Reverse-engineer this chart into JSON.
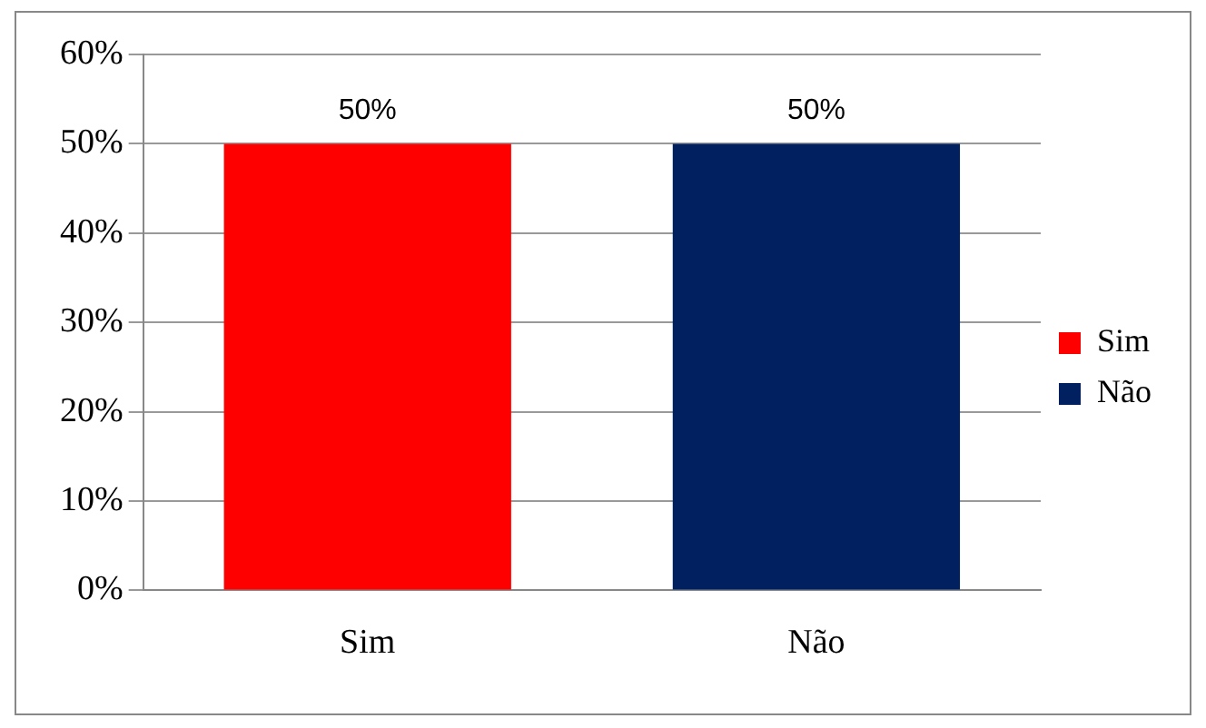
{
  "chart_data": {
    "type": "bar",
    "categories": [
      "Sim",
      "Não"
    ],
    "series": [
      {
        "name": "Sim",
        "color": "#ff0000",
        "values": [
          50,
          null
        ],
        "value_labels": [
          "50%",
          null
        ]
      },
      {
        "name": "Não",
        "color": "#002060",
        "values": [
          null,
          50
        ],
        "value_labels": [
          null,
          "50%"
        ]
      }
    ],
    "ylim": [
      0,
      60
    ],
    "yticks": [
      {
        "value": 0,
        "label": "0%"
      },
      {
        "value": 10,
        "label": "10%"
      },
      {
        "value": 20,
        "label": "20%"
      },
      {
        "value": 30,
        "label": "30%"
      },
      {
        "value": 40,
        "label": "40%"
      },
      {
        "value": 50,
        "label": "50%"
      },
      {
        "value": 60,
        "label": "60%"
      }
    ],
    "grid": "y",
    "legend": "right"
  }
}
